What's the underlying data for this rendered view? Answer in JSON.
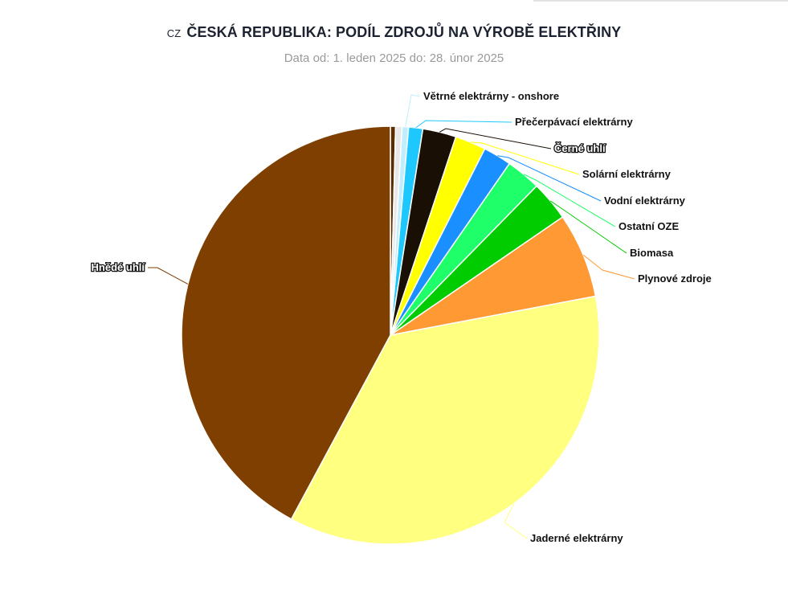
{
  "header": {
    "country_code": "CZ",
    "title": "ČESKÁ REPUBLIKA: PODÍL ZDROJŮ NA VÝROBĚ ELEKTŘINY",
    "subtitle": "Data od: 1. leden 2025 do: 28. únor 2025"
  },
  "chart_data": {
    "type": "pie",
    "title": "ČESKÁ REPUBLIKA: PODÍL ZDROJŮ NA VÝROBĚ ELEKTŘINY",
    "subtitle": "Data od: 1. leden 2025 do: 28. únor 2025",
    "start_angle_deg": 0,
    "direction": "clockwise",
    "labels": "outside with connector lines",
    "slices": [
      {
        "label": "",
        "value": 0.4,
        "color": "#5a2e00"
      },
      {
        "label": "",
        "value": 0.5,
        "color": "#e8e8e8"
      },
      {
        "label": "Větrné elektrárny - onshore",
        "value": 0.5,
        "color": "#bfefff"
      },
      {
        "label": "Přečerpávací elektrárny",
        "value": 1.1,
        "color": "#1ec8ff"
      },
      {
        "label": "Černé uhlí",
        "value": 2.6,
        "color": "#1a0f05",
        "outlined_label": true
      },
      {
        "label": "Solární elektrárny",
        "value": 2.4,
        "color": "#ffff00"
      },
      {
        "label": "Vodní elektrárny",
        "value": 2.2,
        "color": "#1a8fff"
      },
      {
        "label": "Ostatní OZE",
        "value": 2.7,
        "color": "#1fff6a"
      },
      {
        "label": "Biomasa",
        "value": 3.1,
        "color": "#00cc00"
      },
      {
        "label": "Plynové zdroje",
        "value": 6.6,
        "color": "#ff9933"
      },
      {
        "label": "Jaderné elektrárny",
        "value": 36.0,
        "color": "#ffff80"
      },
      {
        "label": "Hnědé uhlí",
        "value": 42.3,
        "color": "#7f3f00",
        "outlined_label": true
      }
    ]
  }
}
